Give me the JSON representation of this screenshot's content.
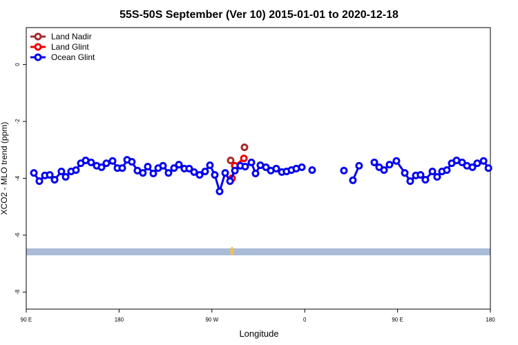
{
  "chart_data": {
    "type": "line",
    "title": "55S-50S September (Ver 10)   2015-01-01 to 2020-12-18",
    "xlabel": "Longitude",
    "ylabel": "XCO2 - MLO trend (ppm)",
    "xlim": [
      90,
      540
    ],
    "ylim": [
      -8.6,
      1.3
    ],
    "xticks": [
      {
        "value": 90,
        "label": "90 E"
      },
      180,
      {
        "value": 270,
        "label": "90 W"
      },
      {
        "value": 360,
        "label": "0"
      },
      {
        "value": 450,
        "label": "90 E"
      },
      {
        "value": 540,
        "label": "180"
      }
    ],
    "yticks": [
      0,
      -2,
      -4,
      -6,
      -8
    ],
    "legend": "top-left",
    "series": [
      {
        "name": "Land Nadir",
        "color": "#a52a2a",
        "x": [
          288.2,
          295,
          301.6
        ],
        "values": [
          -3.37,
          null,
          -2.91
        ]
      },
      {
        "name": "Land Glint",
        "color": "#ee0000",
        "x": [
          289.5,
          292.2,
          301.0
        ],
        "values": [
          -4.0,
          -3.56,
          -3.3
        ]
      },
      {
        "name": "Ocean Glint",
        "color": "#0000ee",
        "x": [
          97.4,
          102.7,
          108.1,
          112.8,
          117.5,
          124.1,
          128.2,
          133.5,
          138.2,
          142.9,
          147.6,
          152.9,
          158.3,
          163.0,
          167.7,
          173.7,
          178.4,
          183.1,
          187.8,
          192.4,
          197.8,
          203.1,
          207.8,
          213.2,
          217.9,
          222.6,
          227.9,
          233.3,
          238.0,
          243.3,
          248.0,
          252.7,
          258.1,
          263.4,
          268.1,
          272.8,
          277.5,
          282.9,
          287.6,
          292.3,
          297.6,
          302.3,
          308.3,
          312.3,
          317.0,
          322.4,
          327.1,
          332.4,
          337.8,
          342.4,
          347.1,
          351.8,
          357.2,
          362,
          367.2,
          380,
          398.0,
          402,
          406.7,
          412.7,
          420,
          427.5,
          432.2,
          436.9,
          442.2,
          448.9,
          457.0,
          462.3,
          467.7,
          472.3,
          477.0,
          483.8,
          488.4,
          493.1,
          497.8,
          502.5,
          507.2,
          512.6,
          517.3,
          522.6,
          527.3,
          533.4,
          538.1
        ],
        "values": [
          -3.81,
          -4.1,
          -3.9,
          -3.88,
          -4.05,
          -3.76,
          -3.95,
          -3.76,
          -3.71,
          -3.47,
          -3.37,
          -3.44,
          -3.56,
          -3.61,
          -3.47,
          -3.39,
          -3.64,
          -3.64,
          -3.35,
          -3.42,
          -3.73,
          -3.81,
          -3.59,
          -3.83,
          -3.64,
          -3.56,
          -3.81,
          -3.64,
          -3.52,
          -3.66,
          -3.66,
          -3.78,
          -3.88,
          -3.76,
          -3.54,
          -3.88,
          -4.46,
          -3.81,
          -4.1,
          -3.73,
          -3.56,
          -3.59,
          -3.44,
          -3.83,
          -3.54,
          -3.61,
          -3.73,
          -3.66,
          -3.78,
          -3.76,
          -3.71,
          -3.66,
          -3.61,
          null,
          -3.71,
          null,
          -3.73,
          null,
          -4.07,
          -3.56,
          null,
          -3.44,
          -3.61,
          -3.71,
          -3.52,
          -3.39,
          -3.81,
          -4.1,
          -3.9,
          -3.88,
          -4.05,
          -3.76,
          -3.95,
          -3.76,
          -3.71,
          -3.47,
          -3.37,
          -3.44,
          -3.56,
          -3.61,
          -3.47,
          -3.39,
          -3.64
        ]
      }
    ]
  }
}
